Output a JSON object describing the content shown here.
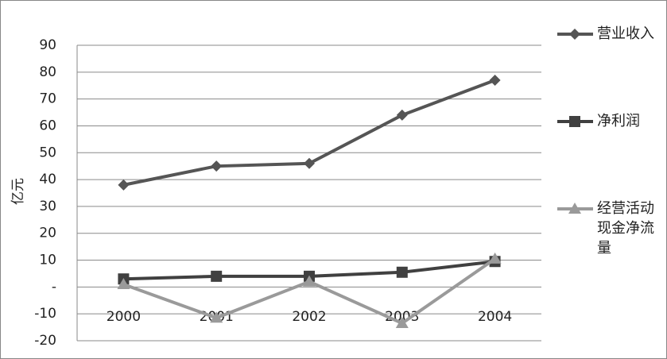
{
  "chart_data": {
    "type": "line",
    "y_label": "亿元",
    "categories": [
      "2000",
      "2001",
      "2002",
      "2003",
      "2004"
    ],
    "series": [
      {
        "name": "营业收入",
        "color": "#555555",
        "marker": "diamond",
        "values": [
          38,
          45,
          46,
          64,
          77
        ]
      },
      {
        "name": "净利润",
        "color": "#404040",
        "marker": "square",
        "values": [
          3,
          4,
          4,
          5.5,
          9.5
        ]
      },
      {
        "name": "经营活动现金净流量",
        "color": "#9a9a9a",
        "marker": "triangle",
        "values": [
          1,
          -11.5,
          2,
          -13.5,
          10.5
        ]
      }
    ],
    "ylim": [
      -20,
      90
    ],
    "yticks": [
      -20,
      -10,
      {
        "value": 0,
        "label": "-"
      },
      10,
      20,
      30,
      40,
      50,
      60,
      70,
      80,
      90
    ],
    "grid": true,
    "legend": "right"
  }
}
